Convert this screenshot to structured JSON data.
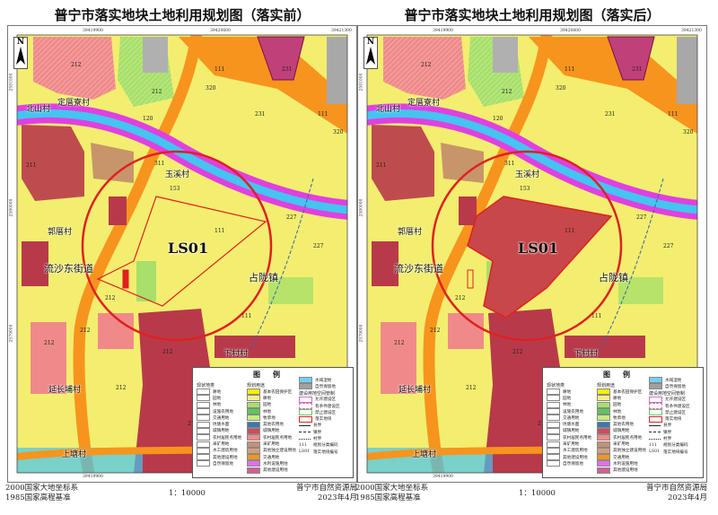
{
  "panels": [
    {
      "title": "普宁市落实地块土地利用规划图（落实前）",
      "state": "before",
      "footer": {
        "coord_system": "2000国家大地坐标系",
        "elevation": "1985国家高程基准",
        "scale": "1：10000",
        "org": "普宁市自然资源局",
        "date": "2023年4月"
      }
    },
    {
      "title": "普宁市落实地块土地利用规划图（落实后）",
      "state": "after",
      "footer": {
        "coord_system": "2000国家大地坐标系",
        "elevation": "1985国家高程基准",
        "scale": "1：10000",
        "org": "普宁市自然资源局",
        "date": "2023年4月"
      }
    }
  ],
  "map": {
    "north": "N",
    "coords_x": [
      "39419900",
      "39420600",
      "39421300"
    ],
    "coords_y": [
      "2581000",
      "2580000",
      "2579000"
    ],
    "places": [
      "北山村",
      "定厝寮村",
      "玉溪村",
      "郭厝村",
      "流沙东街道",
      "占陇镇",
      "下村村",
      "延长埔村",
      "上塘村"
    ],
    "parcel_id": "LS01",
    "codes": [
      "212",
      "212",
      "111",
      "320",
      "120",
      "231",
      "231",
      "111",
      "320",
      "211",
      "311",
      "153",
      "227",
      "227",
      "111",
      "212",
      "212",
      "212",
      "212",
      "212",
      "212",
      "111",
      "111"
    ]
  },
  "legend": {
    "title": "图例",
    "status_header": "现状地类",
    "status": [
      "耕地",
      "园地",
      "林地",
      "设施农用地",
      "交通用地",
      "坑塘水面",
      "城镇用地",
      "农村居民点用地",
      "采矿用地",
      "水工建筑用地",
      "其他建设用地",
      "自然保留地"
    ],
    "plan_header": "规划用途",
    "plan": [
      {
        "label": "基本农田保护区",
        "color": "#f5f000"
      },
      {
        "label": "耕地",
        "color": "#f3ef8a"
      },
      {
        "label": "园地",
        "color": "#a8e06a"
      },
      {
        "label": "林地",
        "color": "#5cc85a"
      },
      {
        "label": "牧草地",
        "color": "#c8ec80"
      },
      {
        "label": "其他农用地",
        "color": "#3a78b0"
      },
      {
        "label": "城镇用地",
        "color": "#d04a5a"
      },
      {
        "label": "农村居民点用地",
        "color": "#f08a8a"
      },
      {
        "label": "采矿用地",
        "color": "#c89070"
      },
      {
        "label": "其他独立建设用地",
        "color": "#d0a080"
      },
      {
        "label": "交通用地",
        "color": "#f7941d"
      },
      {
        "label": "水利设施用地",
        "color": "#e070f0"
      },
      {
        "label": "其他建设用地",
        "color": "#d06090"
      }
    ],
    "other": [
      {
        "label": "水域湿地",
        "color": "#70d0f0"
      },
      {
        "label": "自然保留地",
        "color": "#a0a0a0"
      }
    ],
    "control_header": "建设用地空间管制",
    "control": [
      {
        "label": "允许建设区",
        "color": "#d070c0"
      },
      {
        "label": "有条件建设区",
        "color": "#d070c0"
      },
      {
        "label": "禁止建设区",
        "color": "#70c060"
      },
      {
        "label": "落实地块",
        "color": "#e02020"
      }
    ],
    "lines": [
      "县界",
      "镇界",
      "村界"
    ],
    "code_sample": "111",
    "code_label": "规划分类编码",
    "id_sample": "LS01",
    "id_label": "落实地块编号"
  },
  "colors": {
    "base": "#f3ee6f",
    "road": "#f7941d",
    "river": "#e040e0",
    "water": "#44c4f0",
    "village": "#f08a8a",
    "town": "#b83a4a",
    "parcel_outline": "#e02020",
    "parcel_fill_after": "#c8474a"
  }
}
